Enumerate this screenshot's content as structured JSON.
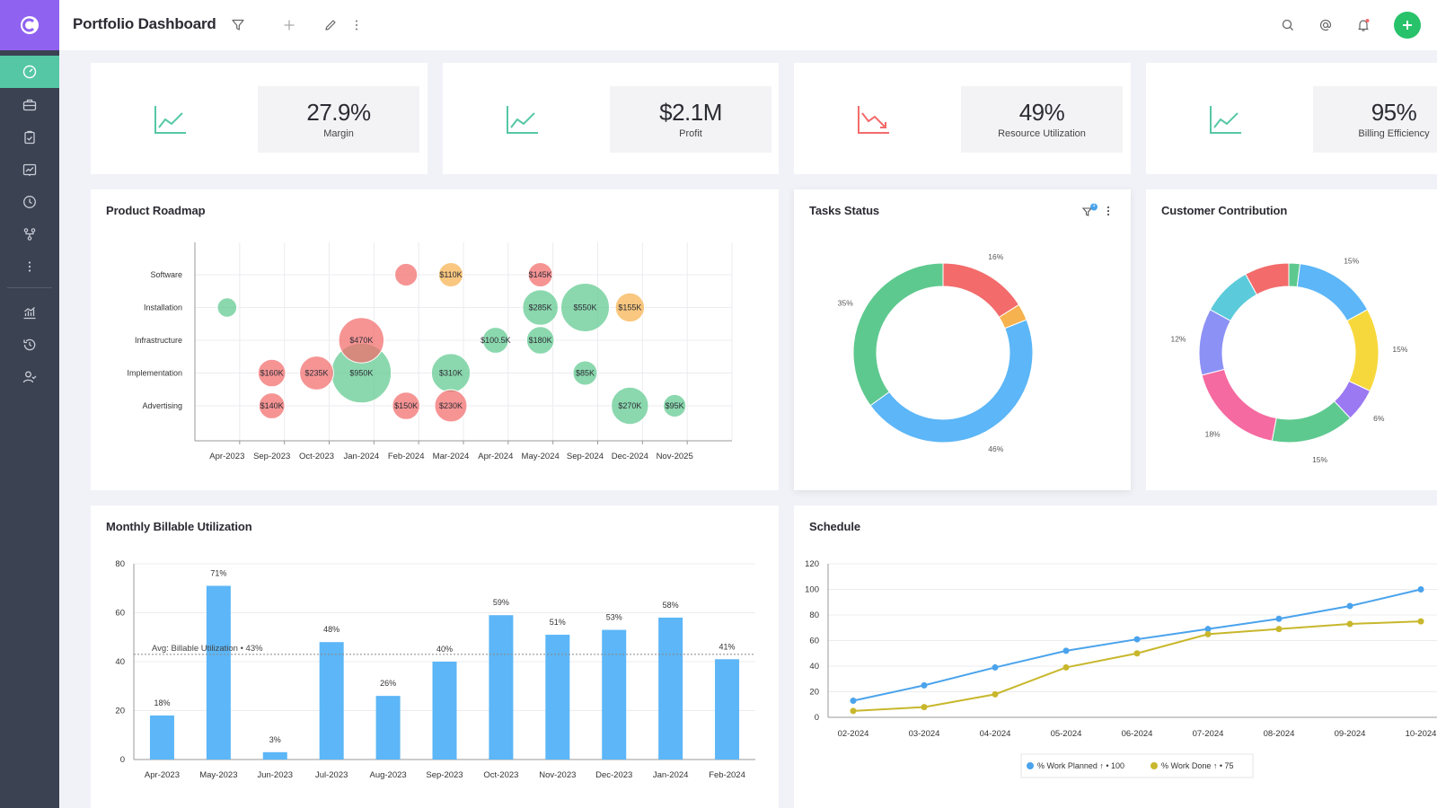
{
  "app": {
    "title": "Portfolio Dashboard"
  },
  "colors": {
    "sidebar": "#3b4252",
    "logo_bg": "#8f62f0",
    "active_nav": "#55c7a5",
    "green": "#5ec98f",
    "red": "#f36b6b",
    "orange": "#f6b24e",
    "blue": "#5cb6f7",
    "yellow": "#f7d83c",
    "add_button": "#27c26a"
  },
  "sidebar": {
    "items": [
      {
        "icon": "dashboard-icon",
        "active": true
      },
      {
        "icon": "briefcase-icon",
        "active": false
      },
      {
        "icon": "clipboard-icon",
        "active": false
      },
      {
        "icon": "report-icon",
        "active": false
      },
      {
        "icon": "clock-icon",
        "active": false
      },
      {
        "icon": "workflow-icon",
        "active": false
      },
      {
        "icon": "more-vertical-icon",
        "active": false
      },
      {
        "icon": "analytics-icon",
        "active": false
      },
      {
        "icon": "history-icon",
        "active": false
      },
      {
        "icon": "user-check-icon",
        "active": false
      }
    ]
  },
  "kpis": [
    {
      "value": "27.9%",
      "label": "Margin",
      "trend": "up"
    },
    {
      "value": "$2.1M",
      "label": "Profit",
      "trend": "up"
    },
    {
      "value": "49%",
      "label": "Resource Utilization",
      "trend": "down"
    },
    {
      "value": "95%",
      "label": "Billing Efficiency",
      "trend": "up"
    }
  ],
  "roadmap": {
    "title": "Product Roadmap",
    "chart_data": {
      "type": "scatter",
      "x_categories": [
        "Apr-2023",
        "Sep-2023",
        "Oct-2023",
        "Jan-2024",
        "Feb-2024",
        "Mar-2024",
        "Apr-2024",
        "May-2024",
        "Sep-2024",
        "Dec-2024",
        "Nov-2025"
      ],
      "y_categories": [
        "Software",
        "Installation",
        "Infrastructure",
        "Implementation",
        "Advertising"
      ],
      "bubbles": [
        {
          "x": "Feb-2024",
          "y": "Software",
          "label": "",
          "size": 1.4,
          "color": "red"
        },
        {
          "x": "Mar-2024",
          "y": "Software",
          "label": "$110K",
          "size": 1.5,
          "color": "orange"
        },
        {
          "x": "May-2024",
          "y": "Software",
          "label": "$145K",
          "size": 1.5,
          "color": "red"
        },
        {
          "x": "Apr-2023",
          "y": "Installation",
          "label": "",
          "size": 1.2,
          "color": "green"
        },
        {
          "x": "May-2024",
          "y": "Installation",
          "label": "$285K",
          "size": 2.2,
          "color": "green"
        },
        {
          "x": "Sep-2024",
          "y": "Installation",
          "label": "$550K",
          "size": 3.0,
          "color": "green"
        },
        {
          "x": "Dec-2024",
          "y": "Installation",
          "label": "$155K",
          "size": 1.8,
          "color": "orange"
        },
        {
          "x": "Jan-2024",
          "y": "Infrastructure",
          "label": "$470K",
          "size": 2.8,
          "color": "red"
        },
        {
          "x": "Apr-2024",
          "y": "Infrastructure",
          "label": "$100.5K",
          "size": 1.6,
          "color": "green"
        },
        {
          "x": "May-2024",
          "y": "Infrastructure",
          "label": "$180K",
          "size": 1.7,
          "color": "green"
        },
        {
          "x": "Sep-2023",
          "y": "Implementation",
          "label": "$160K",
          "size": 1.7,
          "color": "red"
        },
        {
          "x": "Oct-2023",
          "y": "Implementation",
          "label": "$235K",
          "size": 2.1,
          "color": "red"
        },
        {
          "x": "Jan-2024",
          "y": "Implementation",
          "label": "$950K",
          "size": 3.7,
          "color": "green"
        },
        {
          "x": "Mar-2024",
          "y": "Implementation",
          "label": "$310K",
          "size": 2.4,
          "color": "green"
        },
        {
          "x": "Sep-2024",
          "y": "Implementation",
          "label": "$85K",
          "size": 1.5,
          "color": "green"
        },
        {
          "x": "Sep-2023",
          "y": "Advertising",
          "label": "$140K",
          "size": 1.6,
          "color": "red"
        },
        {
          "x": "Feb-2024",
          "y": "Advertising",
          "label": "$150K",
          "size": 1.7,
          "color": "red"
        },
        {
          "x": "Mar-2024",
          "y": "Advertising",
          "label": "$230K",
          "size": 2.0,
          "color": "red"
        },
        {
          "x": "Dec-2024",
          "y": "Advertising",
          "label": "$270K",
          "size": 2.3,
          "color": "green"
        },
        {
          "x": "Nov-2025",
          "y": "Advertising",
          "label": "$95K",
          "size": 1.4,
          "color": "green"
        }
      ]
    }
  },
  "tasks": {
    "title": "Tasks Status",
    "filter_badge": "1",
    "chart_data": {
      "type": "pie",
      "donut": true,
      "slices": [
        {
          "value": 16,
          "label": "16%",
          "color": "#f36b6b"
        },
        {
          "value": 3,
          "label": "",
          "color": "#f6b24e"
        },
        {
          "value": 46,
          "label": "46%",
          "color": "#5cb6f7"
        },
        {
          "value": 35,
          "label": "35%",
          "color": "#5ec98f"
        }
      ]
    }
  },
  "customers": {
    "title": "Customer Contribution",
    "chart_data": {
      "type": "pie",
      "donut": true,
      "slices": [
        {
          "value": 2,
          "label": "",
          "color": "#5ec98f"
        },
        {
          "value": 15,
          "label": "15%",
          "color": "#5cb6f7"
        },
        {
          "value": 15,
          "label": "15%",
          "color": "#f7d83c"
        },
        {
          "value": 6,
          "label": "6%",
          "color": "#9b79f2"
        },
        {
          "value": 15,
          "label": "15%",
          "color": "#5ec98f"
        },
        {
          "value": 18,
          "label": "18%",
          "color": "#f56aa0"
        },
        {
          "value": 12,
          "label": "12%",
          "color": "#8c91f5"
        },
        {
          "value": 9,
          "label": "",
          "color": "#5bcadb"
        },
        {
          "value": 8,
          "label": "",
          "color": "#f36b6b"
        }
      ]
    }
  },
  "billable": {
    "title": "Monthly Billable Utilization",
    "chart_data": {
      "type": "bar",
      "categories": [
        "Apr-2023",
        "May-2023",
        "Jun-2023",
        "Jul-2023",
        "Aug-2023",
        "Sep-2023",
        "Oct-2023",
        "Nov-2023",
        "Dec-2023",
        "Jan-2024",
        "Feb-2024"
      ],
      "values": [
        18,
        71,
        3,
        48,
        26,
        40,
        59,
        51,
        53,
        58,
        41
      ],
      "value_labels": [
        "18%",
        "71%",
        "3%",
        "48%",
        "26%",
        "40%",
        "59%",
        "51%",
        "53%",
        "58%",
        "41%"
      ],
      "ylim": [
        0,
        80
      ],
      "yticks": [
        0,
        20,
        40,
        60,
        80
      ],
      "average": 43,
      "average_label": "Avg: Billable Utilization • 43%",
      "color": "#5cb6f7"
    }
  },
  "schedule": {
    "title": "Schedule",
    "chart_data": {
      "type": "line",
      "x": [
        "02-2024",
        "03-2024",
        "04-2024",
        "05-2024",
        "06-2024",
        "07-2024",
        "08-2024",
        "09-2024",
        "10-2024"
      ],
      "ylim": [
        0,
        120
      ],
      "yticks": [
        0,
        20,
        40,
        60,
        80,
        100,
        120
      ],
      "series": [
        {
          "name": "% Work Planned ↑ • 100",
          "color": "#4aa3ec",
          "values": [
            13,
            25,
            39,
            52,
            61,
            69,
            77,
            87,
            100
          ]
        },
        {
          "name": "% Work Done ↑ • 75",
          "color": "#c8b72c",
          "values": [
            5,
            8,
            18,
            39,
            50,
            65,
            69,
            73,
            75
          ]
        }
      ]
    }
  }
}
